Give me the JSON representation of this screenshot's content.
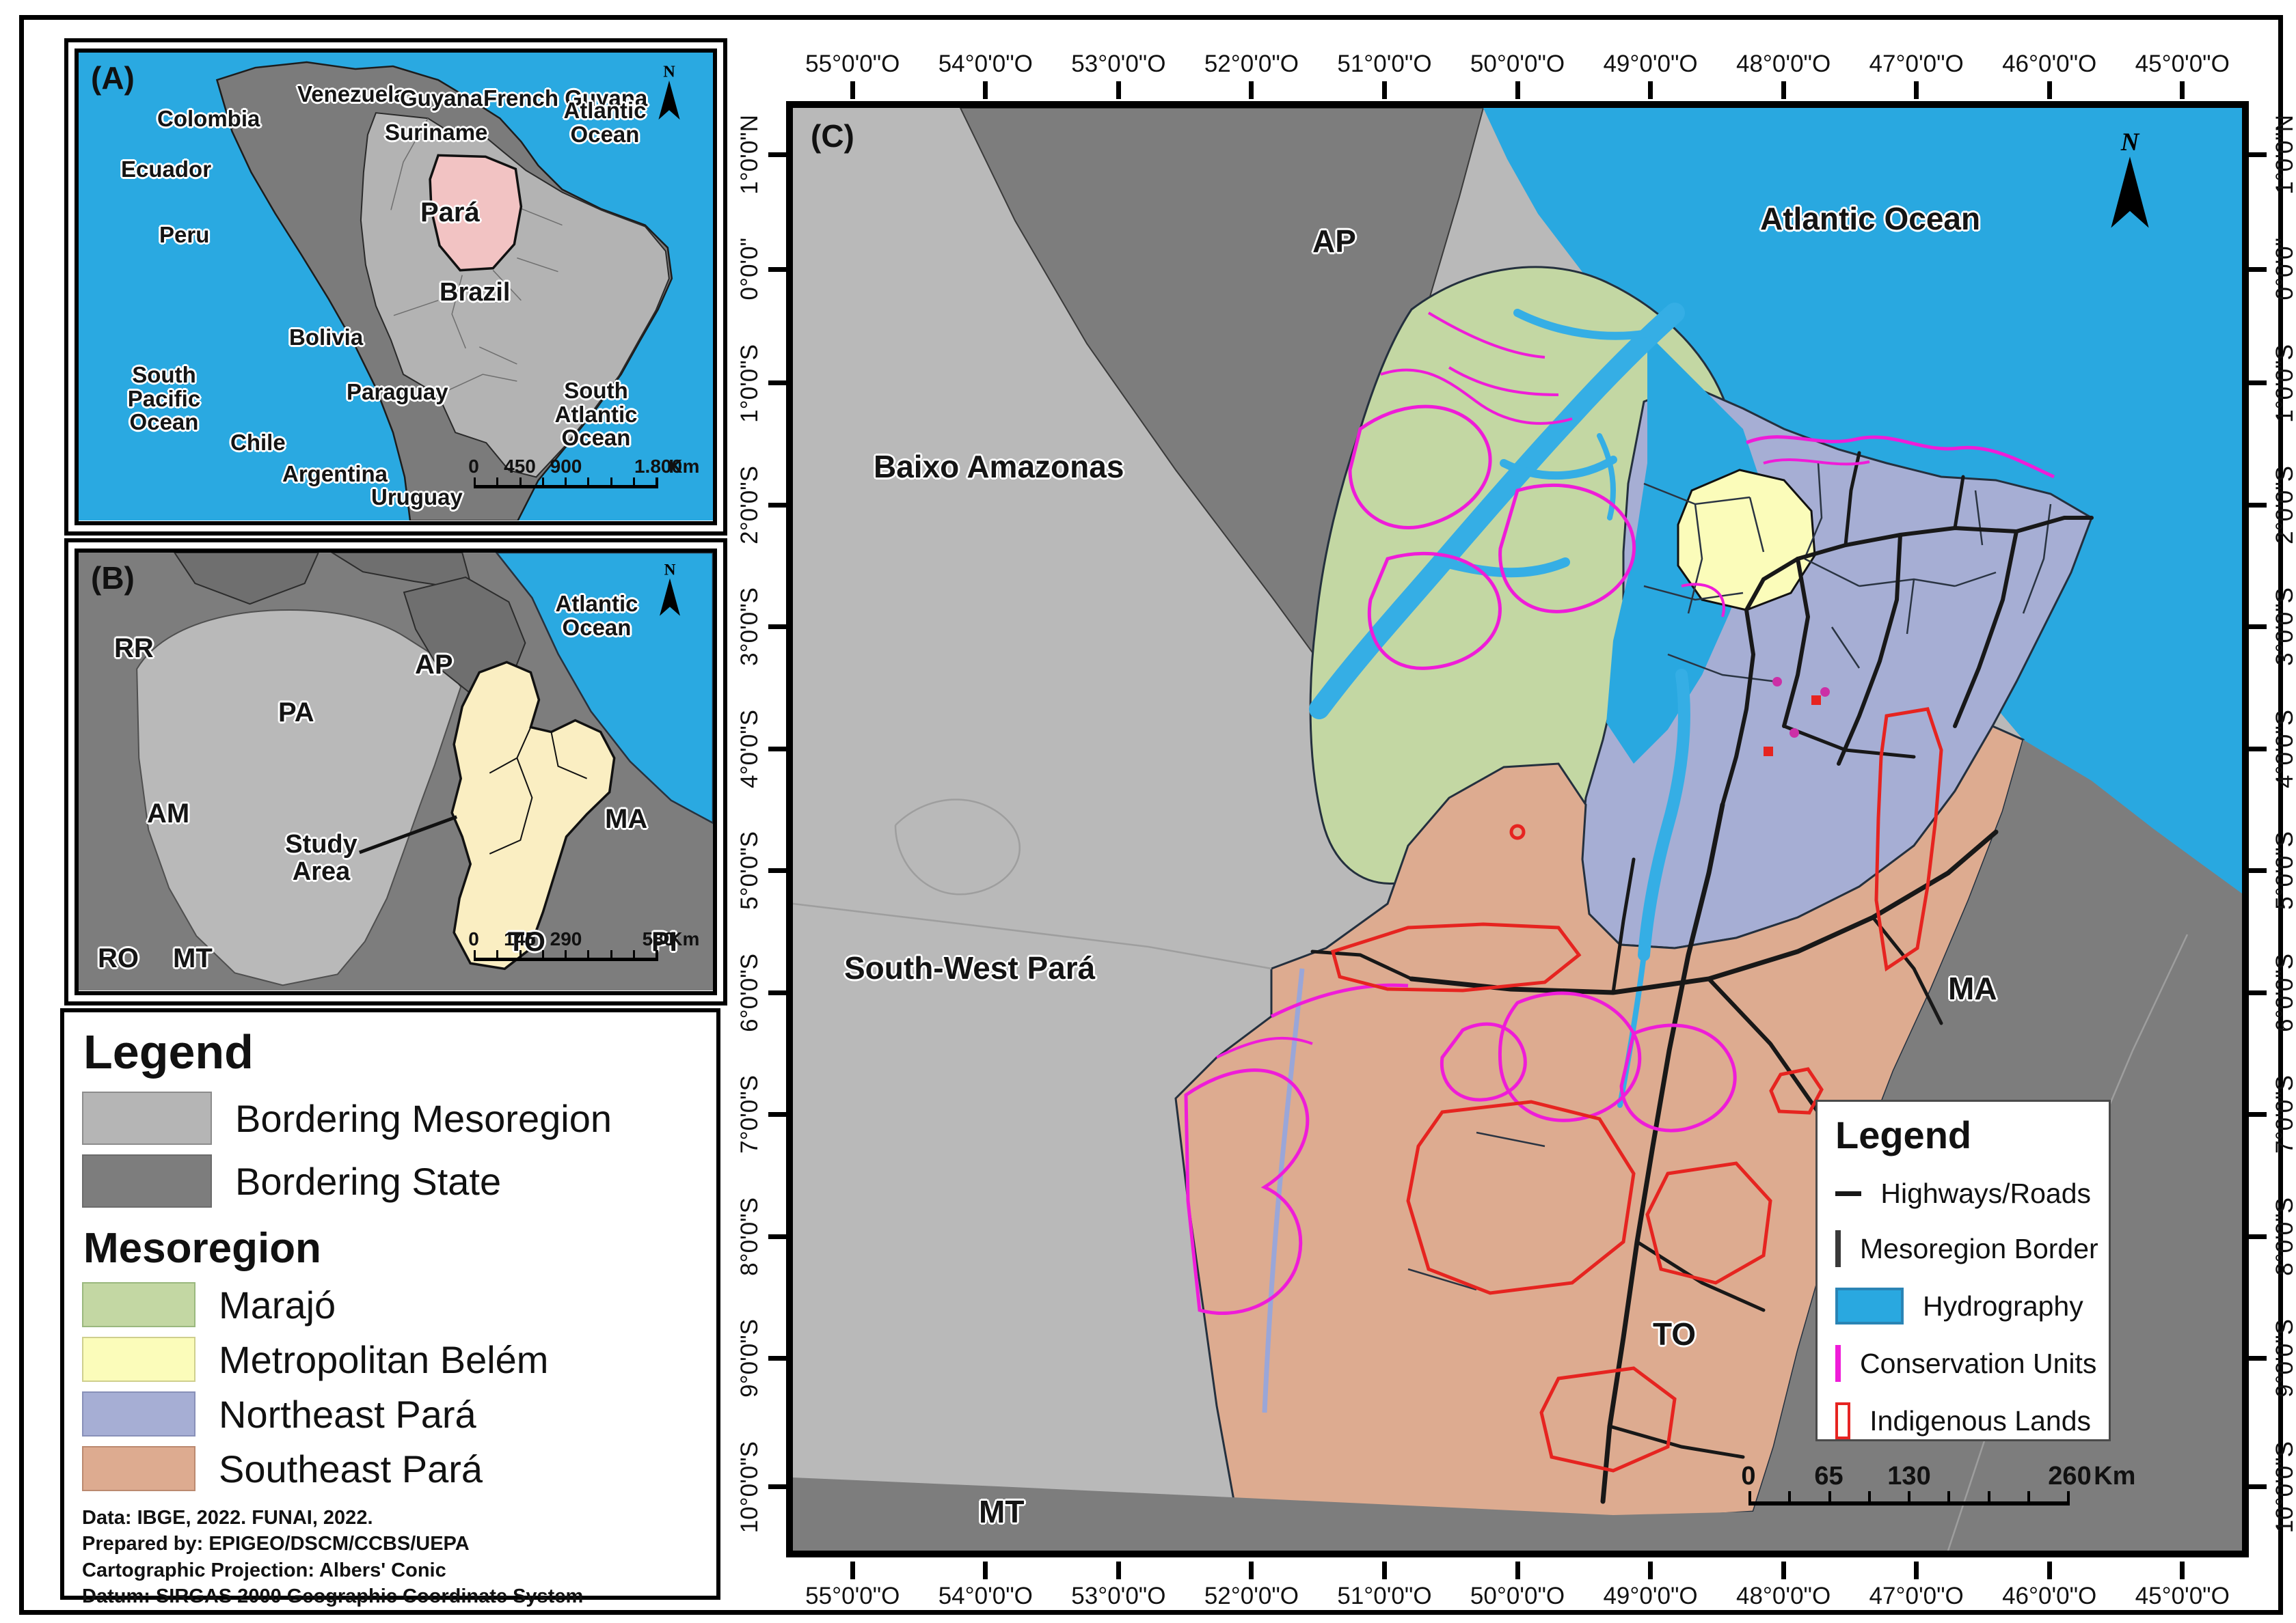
{
  "panel_a": {
    "tag": "(A)",
    "labels": {
      "colombia": "Colombia",
      "venezuela": "Venezuela",
      "guyana": "Guyana",
      "french_guyana": "French Guyana",
      "suriname": "Suriname",
      "ecuador": "Ecuador",
      "peru": "Peru",
      "para": "Pará",
      "brazil": "Brazil",
      "bolivia": "Bolivia",
      "paraguay": "Paraguay",
      "chile": "Chile",
      "argentina": "Argentina",
      "uruguay": "Uruguay",
      "south_pacific_ocean": "South Pacific Ocean",
      "atlantic_ocean": "Atlantic Ocean",
      "south_atlantic_ocean": "South Atlantic Ocean"
    },
    "north": "N",
    "scale": {
      "t0": "0",
      "t1": "450",
      "t2": "900",
      "t3": "1.800",
      "unit": "Km"
    }
  },
  "panel_b": {
    "tag": "(B)",
    "labels": {
      "rr": "RR",
      "pa": "PA",
      "ap": "AP",
      "atlantic_ocean": "Atlantic Ocean",
      "am": "AM",
      "study_area": "Study Area",
      "ma": "MA",
      "to": "TO",
      "pi": "PI",
      "ro": "RO",
      "mt": "MT"
    },
    "north": "N",
    "scale": {
      "t0": "0",
      "t1": "145",
      "t2": "290",
      "t3": "580",
      "unit": "Km"
    }
  },
  "legend_panel": {
    "title": "Legend",
    "border_items": [
      {
        "label": "Bordering Mesoregion",
        "fill": "#b5b5b5",
        "stroke": "#8c8c8c"
      },
      {
        "label": "Bordering State",
        "fill": "#7d7d7d",
        "stroke": "#6b6b6b"
      }
    ],
    "subtitle": "Mesoregion",
    "mesoregion_items": [
      {
        "label": "Marajó",
        "fill": "#c3d7a3",
        "stroke": "#9ab87e"
      },
      {
        "label": "Metropolitan Belém",
        "fill": "#fbfcba",
        "stroke": "#cfcf8e"
      },
      {
        "label": "Northeast Pará",
        "fill": "#a6aed4",
        "stroke": "#8890b8"
      },
      {
        "label": "Southeast Pará",
        "fill": "#ddab90",
        "stroke": "#bb8a70"
      }
    ],
    "credits": [
      "Data: IBGE, 2022. FUNAI, 2022.",
      "Prepared by: EPIGEO/DSCM/CCBS/UEPA",
      "Cartographic Projection: Albers' Conic",
      "Datum: SIRGAS 2000 Geographic Coordinate System"
    ]
  },
  "panel_c": {
    "tag": "(C)",
    "labels": {
      "ap": "AP",
      "atlantic_ocean": "Atlantic Ocean",
      "baixo_amazonas": "Baixo Amazonas",
      "south_west_para": "South-West Pará",
      "ma": "MA",
      "to": "TO",
      "mt": "MT"
    },
    "north": "N",
    "axis": {
      "lon": [
        "55°0'0\"O",
        "54°0'0\"O",
        "53°0'0\"O",
        "52°0'0\"O",
        "51°0'0\"O",
        "50°0'0\"O",
        "49°0'0\"O",
        "48°0'0\"O",
        "47°0'0\"O",
        "46°0'0\"O",
        "45°0'0\"O"
      ],
      "lat": [
        "1°0'0\"N",
        "0°0'0\"",
        "1°0'0\"S",
        "2°0'0\"S",
        "3°0'0\"S",
        "4°0'0\"S",
        "5°0'0\"S",
        "6°0'0\"S",
        "7°0'0\"S",
        "8°0'0\"S",
        "9°0'0\"S",
        "10°0'0\"S"
      ]
    },
    "legend": {
      "title": "Legend",
      "items": [
        {
          "label": "Highways/Roads",
          "type": "sw-line",
          "fill": "#181818",
          "stroke": "#181818"
        },
        {
          "label": "Mesoregion Border",
          "type": "sw-rect",
          "fill": "#ffffff",
          "stroke": "#3a3a3a"
        },
        {
          "label": "Hydrography",
          "type": "sw-rect",
          "fill": "#29a8e0",
          "stroke": "#2a84b5"
        },
        {
          "label": "Conservation Units",
          "type": "sw-rect",
          "fill": "#ffffff",
          "stroke": "#ef1cd8"
        },
        {
          "label": "Indigenous Lands",
          "type": "sw-rect",
          "fill": "#fffef8",
          "stroke": "#e62420"
        }
      ]
    },
    "scale": {
      "t0": "0",
      "t1": "65",
      "t2": "130",
      "t3": "260",
      "unit": "Km"
    }
  }
}
